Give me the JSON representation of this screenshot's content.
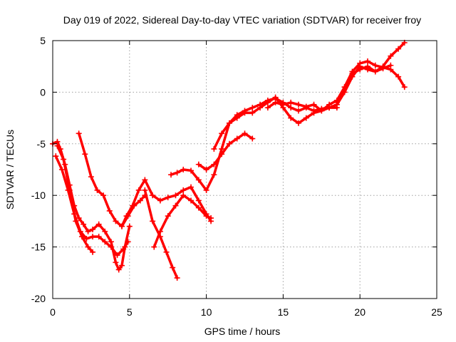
{
  "chart_data": {
    "type": "scatter",
    "title": "Day 019 of 2022, Sidereal Day-to-day VTEC variation (SDTVAR) for receiver froy",
    "xlabel": "GPS time / hours",
    "ylabel": "SDTVAR / TECUs",
    "xlim": [
      0,
      25
    ],
    "ylim": [
      -20,
      5
    ],
    "x_ticks": [
      0,
      5,
      10,
      15,
      20,
      25
    ],
    "y_ticks": [
      -20,
      -15,
      -10,
      -5,
      0,
      5
    ],
    "x_tick_labels": [
      "0",
      "5",
      "10",
      "15",
      "20",
      "25"
    ],
    "y_tick_labels": [
      "-20",
      "-15",
      "-10",
      "-5",
      "0",
      "5"
    ],
    "grid": true,
    "marker": "plus",
    "color": "#ff0000",
    "series": [
      {
        "x": [
          0.0,
          0.3,
          0.5,
          0.8,
          1.1,
          1.4,
          1.7,
          2.0,
          2.3,
          2.6,
          3.0,
          3.4,
          3.8,
          4.1,
          4.3,
          4.5,
          4.7,
          5.0
        ],
        "y": [
          -5.0,
          -4.8,
          -5.5,
          -7.0,
          -9.0,
          -11.0,
          -12.2,
          -12.8,
          -13.5,
          -13.3,
          -12.8,
          -13.5,
          -14.5,
          -16.5,
          -17.2,
          -16.8,
          -15.0,
          -13.0
        ]
      },
      {
        "x": [
          0.2,
          0.6,
          1.0,
          1.4,
          1.8,
          2.2,
          2.6,
          3.0,
          3.4,
          3.8,
          4.2,
          4.6,
          4.9
        ],
        "y": [
          -6.2,
          -7.5,
          -9.5,
          -11.8,
          -13.5,
          -14.2,
          -14.0,
          -14.0,
          -14.5,
          -15.0,
          -15.8,
          -15.2,
          -14.5
        ]
      },
      {
        "x": [
          0.3,
          0.7,
          1.1,
          1.5,
          1.9,
          2.3,
          2.6
        ],
        "y": [
          -5.2,
          -6.5,
          -9.5,
          -12.5,
          -14.0,
          -15.0,
          -15.5
        ]
      },
      {
        "x": [
          1.7,
          2.1,
          2.5,
          2.9,
          3.3,
          3.7,
          4.1,
          4.5,
          4.9,
          5.3,
          5.7,
          6.0
        ],
        "y": [
          -4.0,
          -6.0,
          -8.2,
          -9.5,
          -10.0,
          -11.5,
          -12.5,
          -13.0,
          -12.0,
          -11.0,
          -10.5,
          -10.0
        ]
      },
      {
        "x": [
          4.5,
          4.8,
          5.2,
          5.6,
          6.0,
          6.5,
          7.0,
          7.5,
          8.0,
          8.5,
          9.0,
          9.5,
          10.0,
          10.3
        ],
        "y": [
          -13.0,
          -12.0,
          -11.0,
          -9.5,
          -8.5,
          -10.0,
          -10.5,
          -10.2,
          -10.0,
          -9.5,
          -9.2,
          -10.5,
          -11.8,
          -12.5
        ]
      },
      {
        "x": [
          6.0,
          6.5,
          7.0,
          7.4,
          7.8,
          8.1
        ],
        "y": [
          -9.5,
          -12.5,
          -14.0,
          -15.5,
          -17.0,
          -18.0
        ]
      },
      {
        "x": [
          6.6,
          7.0,
          7.5,
          8.0,
          8.5,
          9.0,
          9.5,
          10.0,
          10.3
        ],
        "y": [
          -15.0,
          -13.5,
          -12.0,
          -11.0,
          -10.0,
          -10.5,
          -11.2,
          -12.0,
          -12.2
        ]
      },
      {
        "x": [
          7.7,
          8.1,
          8.5,
          9.0,
          9.5,
          10.0,
          10.5,
          11.0,
          11.5,
          12.0,
          12.5,
          13.0,
          13.5,
          14.0,
          14.5,
          15.0,
          15.5,
          16.0,
          16.5,
          17.0,
          17.5,
          18.0,
          18.5
        ],
        "y": [
          -8.0,
          -7.8,
          -7.5,
          -7.6,
          -8.5,
          -9.5,
          -8.0,
          -5.5,
          -3.0,
          -2.2,
          -1.8,
          -1.5,
          -1.2,
          -0.8,
          -0.6,
          -1.0,
          -1.5,
          -1.8,
          -1.5,
          -1.8,
          -1.6,
          -1.5,
          -1.5
        ]
      },
      {
        "x": [
          9.5,
          10.0,
          10.5,
          11.0,
          11.5,
          12.0,
          12.5,
          13.0
        ],
        "y": [
          -7.0,
          -7.5,
          -7.0,
          -6.0,
          -5.0,
          -4.5,
          -4.0,
          -4.5
        ]
      },
      {
        "x": [
          10.5,
          11.0,
          11.5,
          12.0,
          12.5,
          13.0,
          13.5,
          14.0,
          14.5,
          15.0,
          15.5,
          16.0,
          16.5,
          17.0,
          17.5,
          18.0,
          18.5,
          19.0,
          19.5,
          20.0,
          20.5,
          21.0,
          21.5,
          22.0,
          22.5,
          22.9
        ],
        "y": [
          -5.5,
          -4.0,
          -3.0,
          -2.5,
          -2.0,
          -2.0,
          -1.5,
          -1.0,
          -0.5,
          -1.5,
          -2.5,
          -3.0,
          -2.5,
          -2.0,
          -1.8,
          -1.2,
          -0.8,
          0.5,
          2.0,
          2.8,
          3.0,
          2.6,
          2.4,
          2.2,
          1.5,
          0.5
        ]
      },
      {
        "x": [
          14.0,
          14.5,
          15.0,
          15.5,
          16.0,
          16.5,
          17.0,
          17.5,
          18.0,
          18.5,
          19.0,
          19.5,
          20.0,
          20.5,
          21.0,
          21.5,
          22.0,
          22.5,
          22.9
        ],
        "y": [
          -1.5,
          -1.0,
          -1.2,
          -1.0,
          -1.2,
          -1.4,
          -1.2,
          -1.8,
          -1.5,
          -1.2,
          0.0,
          1.5,
          2.5,
          2.2,
          2.0,
          2.5,
          3.5,
          4.2,
          4.8
        ]
      },
      {
        "x": [
          18.5,
          19.0,
          19.5,
          20.0,
          20.5,
          21.0,
          21.5,
          22.0
        ],
        "y": [
          -1.0,
          0.5,
          1.8,
          2.2,
          2.5,
          2.0,
          2.3,
          2.6
        ]
      }
    ]
  }
}
